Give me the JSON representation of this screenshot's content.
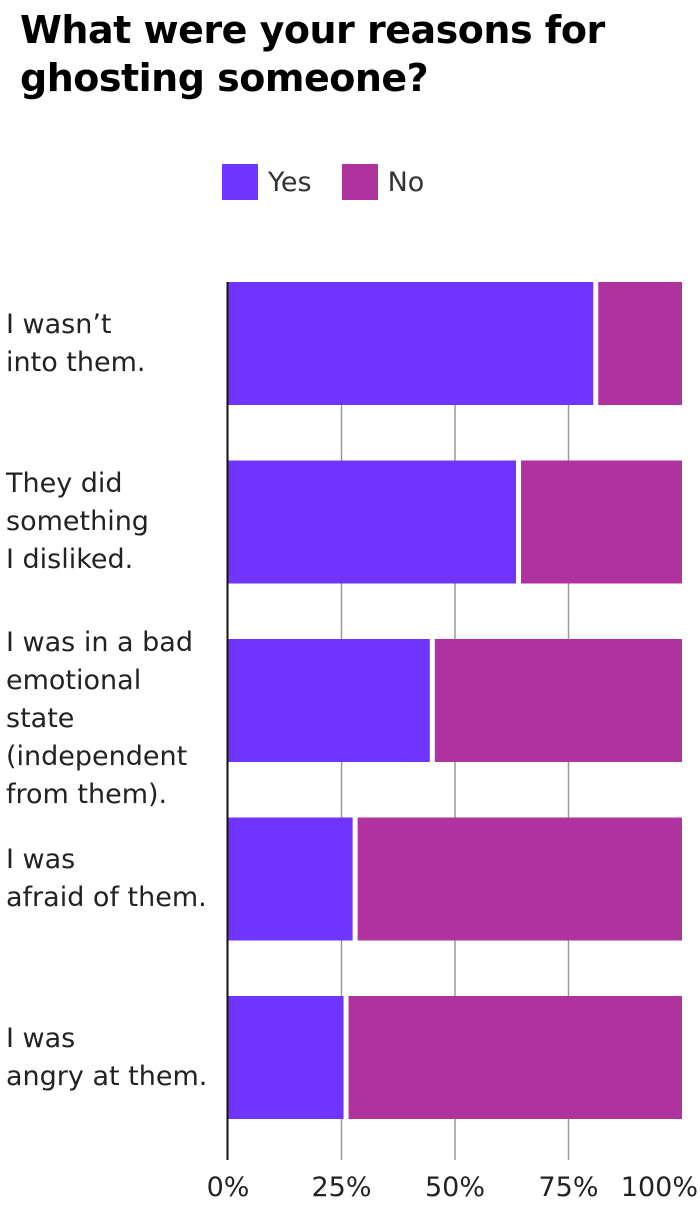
{
  "title_line1": "What were your reasons for",
  "title_line2": "ghosting someone?",
  "legend": [
    {
      "label": "Yes",
      "color": "#7034ff"
    },
    {
      "label": "No",
      "color": "#b0329f"
    }
  ],
  "chart_data": {
    "type": "bar",
    "orientation": "horizontal",
    "stacked": true,
    "categories": [
      "I wasn’t\ninto them.",
      "They did\nsomething\nI disliked.",
      "I was in a bad\nemotional\nstate\n(independent\nfrom them).",
      "I was\nafraid of them.",
      "I was\nangry at them."
    ],
    "series": [
      {
        "name": "Yes",
        "values": [
          81,
          64,
          45,
          28,
          26
        ],
        "color": "#7034ff"
      },
      {
        "name": "No",
        "values": [
          19,
          36,
          55,
          72,
          74
        ],
        "color": "#b0329f"
      }
    ],
    "x_ticks": [
      "0%",
      "25%",
      "50%",
      "75%",
      "100%"
    ],
    "xlim": [
      0,
      100
    ],
    "xlabel": "",
    "ylabel": "",
    "grid": true,
    "legend_position": "top"
  }
}
